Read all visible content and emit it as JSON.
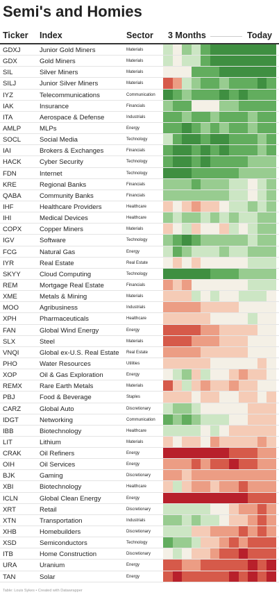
{
  "header": {
    "title": "Semi's and Homies"
  },
  "table": {
    "columns": [
      "Ticker",
      "Index",
      "Sector",
      "3 Months",
      "Today"
    ],
    "rows": [
      {
        "ticker": "GDXJ",
        "index": "Junior Gold Miners",
        "sector": "Materials",
        "heat": [
          "#cce6c4",
          "#f4f0e6",
          "#98cc90",
          "#cce6c4",
          "#62ad5e",
          "#3f8f41",
          "#3f8f41",
          "#3f8f41",
          "#3f8f41",
          "#3f8f41",
          "#3f8f41",
          "#3f8f41"
        ]
      },
      {
        "ticker": "GDX",
        "index": "Gold Miners",
        "sector": "Materials",
        "heat": [
          "#cce6c4",
          "#f4f0e6",
          "#cce6c4",
          "#cce6c4",
          "#62ad5e",
          "#3f8f41",
          "#3f8f41",
          "#3f8f41",
          "#3f8f41",
          "#3f8f41",
          "#3f8f41",
          "#3f8f41"
        ]
      },
      {
        "ticker": "SIL",
        "index": "Silver Miners",
        "sector": "Materials",
        "heat": [
          "#f4f0e6",
          "#f4f0e6",
          "#f4f0e6",
          "#62ad5e",
          "#62ad5e",
          "#62ad5e",
          "#3f8f41",
          "#3f8f41",
          "#3f8f41",
          "#3f8f41",
          "#3f8f41",
          "#3f8f41"
        ]
      },
      {
        "ticker": "SILJ",
        "index": "Junior Silver Miners",
        "sector": "Materials",
        "heat": [
          "#d65a4a",
          "#ec9d84",
          "#cce6c4",
          "#98cc90",
          "#62ad5e",
          "#62ad5e",
          "#98cc90",
          "#62ad5e",
          "#62ad5e",
          "#62ad5e",
          "#3f8f41",
          "#62ad5e"
        ]
      },
      {
        "ticker": "IYZ",
        "index": "Telecommunications",
        "sector": "Communication",
        "heat": [
          "#3f8f41",
          "#62ad5e",
          "#98cc90",
          "#62ad5e",
          "#62ad5e",
          "#62ad5e",
          "#3f8f41",
          "#62ad5e",
          "#3f8f41",
          "#62ad5e",
          "#62ad5e",
          "#62ad5e"
        ]
      },
      {
        "ticker": "IAK",
        "index": "Insurance",
        "sector": "Financials",
        "heat": [
          "#98cc90",
          "#62ad5e",
          "#62ad5e",
          "#f4f0e6",
          "#f4f0e6",
          "#f4f0e6",
          "#98cc90",
          "#98cc90",
          "#62ad5e",
          "#62ad5e",
          "#62ad5e",
          "#62ad5e"
        ]
      },
      {
        "ticker": "ITA",
        "index": "Aerospace & Defense",
        "sector": "Industrials",
        "heat": [
          "#62ad5e",
          "#62ad5e",
          "#98cc90",
          "#62ad5e",
          "#62ad5e",
          "#98cc90",
          "#62ad5e",
          "#62ad5e",
          "#62ad5e",
          "#98cc90",
          "#62ad5e",
          "#62ad5e"
        ]
      },
      {
        "ticker": "AMLP",
        "index": "MLPs",
        "sector": "Energy",
        "heat": [
          "#62ad5e",
          "#62ad5e",
          "#3f8f41",
          "#62ad5e",
          "#98cc90",
          "#62ad5e",
          "#98cc90",
          "#62ad5e",
          "#62ad5e",
          "#98cc90",
          "#62ad5e",
          "#62ad5e"
        ]
      },
      {
        "ticker": "SOCL",
        "index": "Social Media",
        "sector": "Technology",
        "heat": [
          "#cce6c4",
          "#62ad5e",
          "#3f8f41",
          "#3f8f41",
          "#62ad5e",
          "#3f8f41",
          "#3f8f41",
          "#62ad5e",
          "#62ad5e",
          "#62ad5e",
          "#98cc90",
          "#62ad5e"
        ]
      },
      {
        "ticker": "IAI",
        "index": "Brokers & Exchanges",
        "sector": "Financials",
        "heat": [
          "#62ad5e",
          "#3f8f41",
          "#3f8f41",
          "#62ad5e",
          "#3f8f41",
          "#62ad5e",
          "#3f8f41",
          "#62ad5e",
          "#62ad5e",
          "#62ad5e",
          "#98cc90",
          "#62ad5e"
        ]
      },
      {
        "ticker": "HACK",
        "index": "Cyber Security",
        "sector": "Technology",
        "heat": [
          "#62ad5e",
          "#3f8f41",
          "#3f8f41",
          "#62ad5e",
          "#3f8f41",
          "#62ad5e",
          "#62ad5e",
          "#62ad5e",
          "#62ad5e",
          "#98cc90",
          "#98cc90",
          "#98cc90"
        ]
      },
      {
        "ticker": "FDN",
        "index": "Internet",
        "sector": "Technology",
        "heat": [
          "#3f8f41",
          "#3f8f41",
          "#3f8f41",
          "#62ad5e",
          "#62ad5e",
          "#62ad5e",
          "#62ad5e",
          "#62ad5e",
          "#98cc90",
          "#98cc90",
          "#98cc90",
          "#98cc90"
        ]
      },
      {
        "ticker": "KRE",
        "index": "Regional Banks",
        "sector": "Financials",
        "heat": [
          "#98cc90",
          "#98cc90",
          "#98cc90",
          "#62ad5e",
          "#98cc90",
          "#98cc90",
          "#98cc90",
          "#cce6c4",
          "#cce6c4",
          "#f4f0e6",
          "#cce6c4",
          "#98cc90"
        ]
      },
      {
        "ticker": "QABA",
        "index": "Community Banks",
        "sector": "Financials",
        "heat": [
          "#98cc90",
          "#98cc90",
          "#98cc90",
          "#98cc90",
          "#98cc90",
          "#98cc90",
          "#98cc90",
          "#cce6c4",
          "#cce6c4",
          "#f4f0e6",
          "#cce6c4",
          "#98cc90"
        ]
      },
      {
        "ticker": "IHF",
        "index": "Healthcare Providers",
        "sector": "Healthcare",
        "heat": [
          "#f5cbb6",
          "#f4f0e6",
          "#f5cbb6",
          "#ec9d84",
          "#f5cbb6",
          "#f5cbb6",
          "#f4f0e6",
          "#cce6c4",
          "#cce6c4",
          "#98cc90",
          "#cce6c4",
          "#98cc90"
        ]
      },
      {
        "ticker": "IHI",
        "index": "Medical Devices",
        "sector": "Healthcare",
        "heat": [
          "#98cc90",
          "#cce6c4",
          "#98cc90",
          "#98cc90",
          "#cce6c4",
          "#98cc90",
          "#cce6c4",
          "#98cc90",
          "#cce6c4",
          "#cce6c4",
          "#98cc90",
          "#98cc90"
        ]
      },
      {
        "ticker": "COPX",
        "index": "Copper Miners",
        "sector": "Materials",
        "heat": [
          "#f5cbb6",
          "#f4f0e6",
          "#cce6c4",
          "#f5cbb6",
          "#f4f0e6",
          "#f4f0e6",
          "#f5cbb6",
          "#cce6c4",
          "#f4f0e6",
          "#cce6c4",
          "#98cc90",
          "#98cc90"
        ]
      },
      {
        "ticker": "IGV",
        "index": "Software",
        "sector": "Technology",
        "heat": [
          "#98cc90",
          "#62ad5e",
          "#3f8f41",
          "#62ad5e",
          "#98cc90",
          "#98cc90",
          "#98cc90",
          "#98cc90",
          "#98cc90",
          "#cce6c4",
          "#98cc90",
          "#98cc90"
        ]
      },
      {
        "ticker": "FCG",
        "index": "Natural Gas",
        "sector": "Energy",
        "heat": [
          "#cce6c4",
          "#62ad5e",
          "#98cc90",
          "#cce6c4",
          "#cce6c4",
          "#cce6c4",
          "#98cc90",
          "#cce6c4",
          "#cce6c4",
          "#98cc90",
          "#98cc90",
          "#98cc90"
        ]
      },
      {
        "ticker": "IYR",
        "index": "Real Estate",
        "sector": "Real Estate",
        "heat": [
          "#f4f0e6",
          "#f5cbb6",
          "#f4f0e6",
          "#f5cbb6",
          "#f4f0e6",
          "#f4f0e6",
          "#f4f0e6",
          "#f4f0e6",
          "#f4f0e6",
          "#cce6c4",
          "#cce6c4",
          "#cce6c4"
        ]
      },
      {
        "ticker": "SKYY",
        "index": "Cloud Computing",
        "sector": "Technology",
        "heat": [
          "#3f8f41",
          "#3f8f41",
          "#3f8f41",
          "#3f8f41",
          "#3f8f41",
          "#62ad5e",
          "#62ad5e",
          "#62ad5e",
          "#98cc90",
          "#98cc90",
          "#98cc90",
          "#98cc90"
        ]
      },
      {
        "ticker": "REM",
        "index": "Mortgage Real Estate",
        "sector": "Financials",
        "heat": [
          "#ec9d84",
          "#f5cbb6",
          "#ec9d84",
          "#f4f0e6",
          "#f4f0e6",
          "#f4f0e6",
          "#f4f0e6",
          "#f4f0e6",
          "#f4f0e6",
          "#cce6c4",
          "#cce6c4",
          "#cce6c4"
        ]
      },
      {
        "ticker": "XME",
        "index": "Metals & Mining",
        "sector": "Materials",
        "heat": [
          "#f5cbb6",
          "#f5cbb6",
          "#f5cbb6",
          "#cce6c4",
          "#f4f0e6",
          "#cce6c4",
          "#f4f0e6",
          "#f4f0e6",
          "#cce6c4",
          "#cce6c4",
          "#cce6c4",
          "#f4f0e6"
        ]
      },
      {
        "ticker": "MOO",
        "index": "Agribusiness",
        "sector": "Industrials",
        "heat": [
          "#ec9d84",
          "#ec9d84",
          "#ec9d84",
          "#ec9d84",
          "#f5cbb6",
          "#f5cbb6",
          "#f5cbb6",
          "#f5cbb6",
          "#f4f0e6",
          "#f4f0e6",
          "#f4f0e6",
          "#f4f0e6"
        ]
      },
      {
        "ticker": "XPH",
        "index": "Pharmaceuticals",
        "sector": "Healthcare",
        "heat": [
          "#f5cbb6",
          "#f5cbb6",
          "#f5cbb6",
          "#f5cbb6",
          "#f5cbb6",
          "#f4f0e6",
          "#f4f0e6",
          "#f4f0e6",
          "#f4f0e6",
          "#cce6c4",
          "#f4f0e6",
          "#f4f0e6"
        ]
      },
      {
        "ticker": "FAN",
        "index": "Global Wind Energy",
        "sector": "Energy",
        "heat": [
          "#d65a4a",
          "#d65a4a",
          "#d65a4a",
          "#d65a4a",
          "#ec9d84",
          "#ec9d84",
          "#f5cbb6",
          "#f5cbb6",
          "#f5cbb6",
          "#f5cbb6",
          "#f4f0e6",
          "#f4f0e6"
        ]
      },
      {
        "ticker": "SLX",
        "index": "Steel",
        "sector": "Materials",
        "heat": [
          "#d65a4a",
          "#d65a4a",
          "#d65a4a",
          "#ec9d84",
          "#ec9d84",
          "#ec9d84",
          "#f5cbb6",
          "#f5cbb6",
          "#f5cbb6",
          "#f4f0e6",
          "#f4f0e6",
          "#f4f0e6"
        ]
      },
      {
        "ticker": "VNQI",
        "index": "Global ex-U.S. Real Estate",
        "sector": "Real Estate",
        "heat": [
          "#ec9d84",
          "#ec9d84",
          "#ec9d84",
          "#ec9d84",
          "#f5cbb6",
          "#f5cbb6",
          "#f5cbb6",
          "#f5cbb6",
          "#f5cbb6",
          "#f4f0e6",
          "#f4f0e6",
          "#f4f0e6"
        ]
      },
      {
        "ticker": "PHO",
        "index": "Water Resources",
        "sector": "Utilities",
        "heat": [
          "#f5cbb6",
          "#f5cbb6",
          "#f5cbb6",
          "#f5cbb6",
          "#f5cbb6",
          "#f4f0e6",
          "#f4f0e6",
          "#f4f0e6",
          "#f4f0e6",
          "#f4f0e6",
          "#f5cbb6",
          "#f4f0e6"
        ]
      },
      {
        "ticker": "XOP",
        "index": "Oil & Gas Exploration",
        "sector": "Energy",
        "heat": [
          "#f4f0e6",
          "#cce6c4",
          "#98cc90",
          "#f5cbb6",
          "#cce6c4",
          "#f4f0e6",
          "#f4f0e6",
          "#f5cbb6",
          "#ec9d84",
          "#f5cbb6",
          "#f5cbb6",
          "#f4f0e6"
        ]
      },
      {
        "ticker": "REMX",
        "index": "Rare Earth Metals",
        "sector": "Materials",
        "heat": [
          "#d65a4a",
          "#f5cbb6",
          "#cce6c4",
          "#f5cbb6",
          "#ec9d84",
          "#f5cbb6",
          "#f5cbb6",
          "#ec9d84",
          "#f5cbb6",
          "#f5cbb6",
          "#f4f0e6",
          "#f4f0e6"
        ]
      },
      {
        "ticker": "PBJ",
        "index": "Food & Beverage",
        "sector": "Staples",
        "heat": [
          "#f5cbb6",
          "#f5cbb6",
          "#f5cbb6",
          "#f4f0e6",
          "#f5cbb6",
          "#f5cbb6",
          "#f4f0e6",
          "#f4f0e6",
          "#f5cbb6",
          "#f5cbb6",
          "#f4f0e6",
          "#f5cbb6"
        ]
      },
      {
        "ticker": "CARZ",
        "index": "Global Auto",
        "sector": "Discretionary",
        "heat": [
          "#cce6c4",
          "#98cc90",
          "#98cc90",
          "#cce6c4",
          "#f4f0e6",
          "#f4f0e6",
          "#f4f0e6",
          "#f4f0e6",
          "#f4f0e6",
          "#f5cbb6",
          "#f5cbb6",
          "#f5cbb6"
        ]
      },
      {
        "ticker": "IDGT",
        "index": "Networking",
        "sector": "Communication",
        "heat": [
          "#62ad5e",
          "#98cc90",
          "#62ad5e",
          "#98cc90",
          "#cce6c4",
          "#cce6c4",
          "#cce6c4",
          "#f4f0e6",
          "#f4f0e6",
          "#f5cbb6",
          "#f5cbb6",
          "#f5cbb6"
        ]
      },
      {
        "ticker": "IBB",
        "index": "Biotechnology",
        "sector": "Healthcare",
        "heat": [
          "#cce6c4",
          "#cce6c4",
          "#cce6c4",
          "#cce6c4",
          "#f4f0e6",
          "#cce6c4",
          "#f4f0e6",
          "#f5cbb6",
          "#f5cbb6",
          "#f5cbb6",
          "#f5cbb6",
          "#f5cbb6"
        ]
      },
      {
        "ticker": "LIT",
        "index": "Lithium",
        "sector": "Materials",
        "heat": [
          "#f5cbb6",
          "#f4f0e6",
          "#f5cbb6",
          "#f5cbb6",
          "#f4f0e6",
          "#ec9d84",
          "#f5cbb6",
          "#f5cbb6",
          "#f5cbb6",
          "#f5cbb6",
          "#ec9d84",
          "#f5cbb6"
        ]
      },
      {
        "ticker": "CRAK",
        "index": "Oil Refiners",
        "sector": "Energy",
        "heat": [
          "#b8202b",
          "#b8202b",
          "#b8202b",
          "#b8202b",
          "#b8202b",
          "#b8202b",
          "#b8202b",
          "#d65a4a",
          "#d65a4a",
          "#d65a4a",
          "#ec9d84",
          "#ec9d84"
        ]
      },
      {
        "ticker": "OIH",
        "index": "Oil Services",
        "sector": "Energy",
        "heat": [
          "#ec9d84",
          "#ec9d84",
          "#ec9d84",
          "#d65a4a",
          "#ec9d84",
          "#d65a4a",
          "#d65a4a",
          "#b8202b",
          "#d65a4a",
          "#d65a4a",
          "#ec9d84",
          "#ec9d84"
        ]
      },
      {
        "ticker": "BJK",
        "index": "Gaming",
        "sector": "Discretionary",
        "heat": [
          "#ec9d84",
          "#ec9d84",
          "#f5cbb6",
          "#ec9d84",
          "#ec9d84",
          "#ec9d84",
          "#ec9d84",
          "#ec9d84",
          "#ec9d84",
          "#ec9d84",
          "#ec9d84",
          "#ec9d84"
        ]
      },
      {
        "ticker": "XBI",
        "index": "Biotechnology",
        "sector": "Healthcare",
        "heat": [
          "#f5cbb6",
          "#cce6c4",
          "#f5cbb6",
          "#ec9d84",
          "#ec9d84",
          "#f5cbb6",
          "#ec9d84",
          "#ec9d84",
          "#d65a4a",
          "#ec9d84",
          "#ec9d84",
          "#ec9d84"
        ]
      },
      {
        "ticker": "ICLN",
        "index": "Global Clean Energy",
        "sector": "Energy",
        "heat": [
          "#b8202b",
          "#b8202b",
          "#b8202b",
          "#b8202b",
          "#b8202b",
          "#b8202b",
          "#b8202b",
          "#b8202b",
          "#b8202b",
          "#d65a4a",
          "#d65a4a",
          "#d65a4a"
        ]
      },
      {
        "ticker": "XRT",
        "index": "Retail",
        "sector": "Discretionary",
        "heat": [
          "#cce6c4",
          "#cce6c4",
          "#cce6c4",
          "#cce6c4",
          "#cce6c4",
          "#f4f0e6",
          "#f4f0e6",
          "#f5cbb6",
          "#ec9d84",
          "#ec9d84",
          "#d65a4a",
          "#ec9d84"
        ]
      },
      {
        "ticker": "XTN",
        "index": "Transportation",
        "sector": "Industrials",
        "heat": [
          "#98cc90",
          "#98cc90",
          "#cce6c4",
          "#98cc90",
          "#cce6c4",
          "#cce6c4",
          "#f4f0e6",
          "#f5cbb6",
          "#f5cbb6",
          "#ec9d84",
          "#d65a4a",
          "#ec9d84"
        ]
      },
      {
        "ticker": "XHB",
        "index": "Homebuilders",
        "sector": "Discretionary",
        "heat": [
          "#cce6c4",
          "#cce6c4",
          "#cce6c4",
          "#f5cbb6",
          "#f5cbb6",
          "#ec9d84",
          "#ec9d84",
          "#ec9d84",
          "#d65a4a",
          "#ec9d84",
          "#d65a4a",
          "#ec9d84"
        ]
      },
      {
        "ticker": "XSD",
        "index": "Semiconductors",
        "sector": "Technology",
        "heat": [
          "#62ad5e",
          "#98cc90",
          "#98cc90",
          "#cce6c4",
          "#f5cbb6",
          "#f5cbb6",
          "#ec9d84",
          "#d65a4a",
          "#ec9d84",
          "#d65a4a",
          "#d65a4a",
          "#d65a4a"
        ]
      },
      {
        "ticker": "ITB",
        "index": "Home Construction",
        "sector": "Discretionary",
        "heat": [
          "#f4f0e6",
          "#cce6c4",
          "#f4f0e6",
          "#f5cbb6",
          "#f5cbb6",
          "#ec9d84",
          "#d65a4a",
          "#d65a4a",
          "#b8202b",
          "#d65a4a",
          "#d65a4a",
          "#d65a4a"
        ]
      },
      {
        "ticker": "URA",
        "index": "Uranium",
        "sector": "Energy",
        "heat": [
          "#d65a4a",
          "#d65a4a",
          "#ec9d84",
          "#ec9d84",
          "#d65a4a",
          "#d65a4a",
          "#d65a4a",
          "#d65a4a",
          "#d65a4a",
          "#b8202b",
          "#d65a4a",
          "#b8202b"
        ]
      },
      {
        "ticker": "TAN",
        "index": "Solar",
        "sector": "Energy",
        "heat": [
          "#d65a4a",
          "#b8202b",
          "#d65a4a",
          "#d65a4a",
          "#d65a4a",
          "#d65a4a",
          "#d65a4a",
          "#b8202b",
          "#d65a4a",
          "#b8202b",
          "#d65a4a",
          "#b8202b"
        ]
      }
    ]
  },
  "footer": {
    "note": "Table: Louis Sykes • Created with Datawrapper"
  }
}
